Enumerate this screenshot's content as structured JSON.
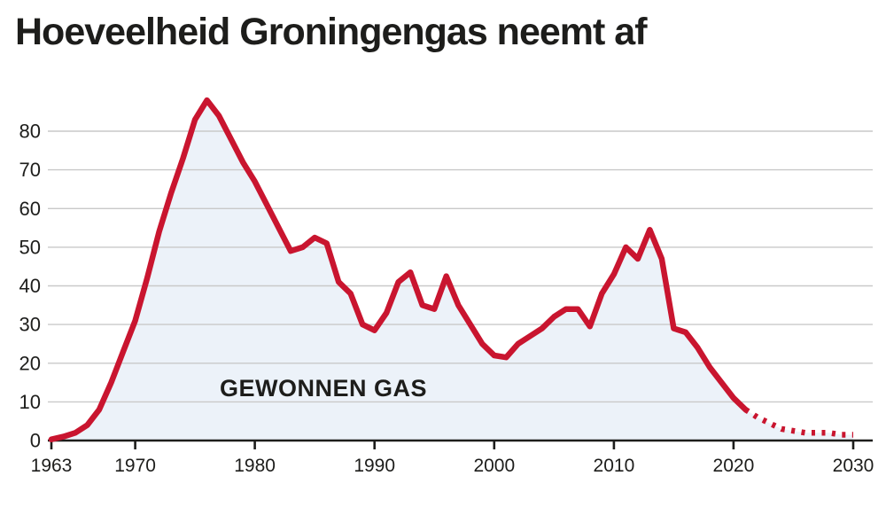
{
  "title": "Hoeveelheid Groningengas neemt af",
  "chart_data": {
    "type": "line",
    "title": "Hoeveelheid Groningengas neemt af",
    "annotation": "GEWONNEN GAS",
    "series_name": "Gewonnen gas",
    "x": [
      1963,
      1964,
      1965,
      1966,
      1967,
      1968,
      1969,
      1970,
      1971,
      1972,
      1973,
      1974,
      1975,
      1976,
      1977,
      1978,
      1979,
      1980,
      1981,
      1982,
      1983,
      1984,
      1985,
      1986,
      1987,
      1988,
      1989,
      1990,
      1991,
      1992,
      1993,
      1994,
      1995,
      1996,
      1997,
      1998,
      1999,
      2000,
      2001,
      2002,
      2003,
      2004,
      2005,
      2006,
      2007,
      2008,
      2009,
      2010,
      2011,
      2012,
      2013,
      2014,
      2015,
      2016,
      2017,
      2018,
      2019,
      2020,
      2021,
      2022,
      2023,
      2024,
      2025,
      2026,
      2027,
      2028,
      2029,
      2030
    ],
    "values": [
      0.3,
      1,
      2,
      4,
      8,
      15,
      23,
      31,
      42,
      54,
      64,
      73,
      83,
      88,
      84,
      78,
      72,
      67,
      61,
      55,
      49,
      50,
      52.5,
      51,
      41,
      38,
      30,
      28.5,
      33,
      41,
      43.5,
      35,
      34,
      42.5,
      35,
      30,
      25,
      22,
      21.5,
      25,
      27,
      29,
      32,
      34,
      34,
      29.5,
      38,
      43,
      50,
      47,
      54.5,
      47,
      29,
      28,
      24,
      19,
      15,
      11,
      8,
      6,
      4.5,
      3,
      2.5,
      2,
      2,
      2,
      1.5,
      1.5
    ],
    "solid_until_year": 2021,
    "forecast_style": "dotted",
    "xticks": [
      1963,
      1970,
      1980,
      1990,
      2000,
      2010,
      2020,
      2030
    ],
    "xtick_labels": [
      "1963",
      "1970",
      "1980",
      "1990",
      "2000",
      "2010",
      "2020",
      "2030"
    ],
    "yticks": [
      0,
      10,
      20,
      30,
      40,
      50,
      60,
      70,
      80
    ],
    "ytick_labels": [
      "0",
      "10",
      "20",
      "30",
      "40",
      "50",
      "60",
      "70",
      "80"
    ],
    "xlim": [
      1963,
      2030
    ],
    "ylim": [
      0,
      90
    ],
    "grid": true,
    "legend": "none",
    "colors": {
      "line": "#c9152f",
      "area": "#ecf2f9",
      "grid": "#c9c9c9",
      "axis": "#1d1d1b",
      "text": "#1d1d1b",
      "background": "#ffffff"
    }
  }
}
